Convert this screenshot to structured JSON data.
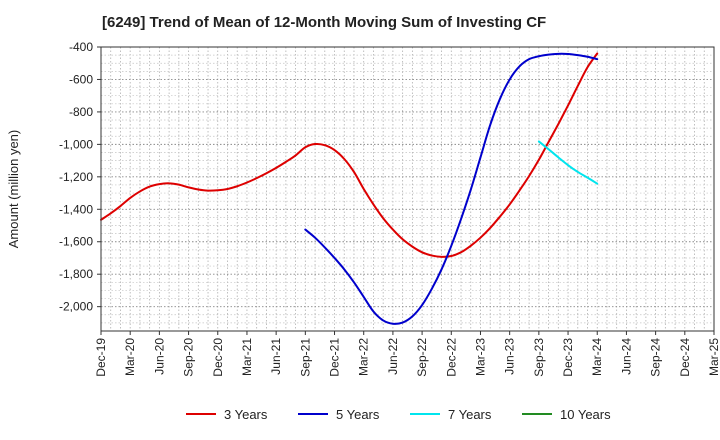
{
  "chart_data": {
    "type": "line",
    "title": "[6249]  Trend of Mean of 12-Month Moving Sum of Investing CF",
    "ylabel": "Amount (million yen)",
    "xlabel": "",
    "ylim": [
      -2150,
      -400
    ],
    "yticks": [
      -400,
      -600,
      -800,
      -1000,
      -1200,
      -1400,
      -1600,
      -1800,
      -2000
    ],
    "ytick_labels": [
      "-400",
      "-600",
      "-800",
      "-1,000",
      "-1,200",
      "-1,400",
      "-1,600",
      "-1,800",
      "-2,000"
    ],
    "xlim": [
      "2019-12",
      "2025-03"
    ],
    "xtick_labels": [
      "Dec-19",
      "Mar-20",
      "Jun-20",
      "Sep-20",
      "Dec-20",
      "Mar-21",
      "Jun-21",
      "Sep-21",
      "Dec-21",
      "Mar-22",
      "Jun-22",
      "Sep-22",
      "Dec-22",
      "Mar-23",
      "Jun-23",
      "Sep-23",
      "Dec-23",
      "Mar-24",
      "Jun-24",
      "Sep-24",
      "Dec-24",
      "Mar-25"
    ],
    "grid": true,
    "legend_position": "bottom",
    "series": [
      {
        "name": "3 Years",
        "color": "#dd0000",
        "points": [
          [
            "2019-12",
            -1465
          ],
          [
            "2020-01",
            -1425
          ],
          [
            "2020-02",
            -1380
          ],
          [
            "2020-03",
            -1330
          ],
          [
            "2020-04",
            -1290
          ],
          [
            "2020-05",
            -1260
          ],
          [
            "2020-06",
            -1245
          ],
          [
            "2020-07",
            -1240
          ],
          [
            "2020-08",
            -1248
          ],
          [
            "2020-09",
            -1265
          ],
          [
            "2020-10",
            -1278
          ],
          [
            "2020-11",
            -1285
          ],
          [
            "2020-12",
            -1283
          ],
          [
            "2021-01",
            -1275
          ],
          [
            "2021-02",
            -1258
          ],
          [
            "2021-03",
            -1235
          ],
          [
            "2021-04",
            -1208
          ],
          [
            "2021-05",
            -1178
          ],
          [
            "2021-06",
            -1145
          ],
          [
            "2021-07",
            -1108
          ],
          [
            "2021-08",
            -1068
          ],
          [
            "2021-09",
            -1018
          ],
          [
            "2021-10",
            -998
          ],
          [
            "2021-11",
            -1005
          ],
          [
            "2021-12",
            -1035
          ],
          [
            "2022-01",
            -1090
          ],
          [
            "2022-02",
            -1170
          ],
          [
            "2022-03",
            -1275
          ],
          [
            "2022-04",
            -1370
          ],
          [
            "2022-05",
            -1455
          ],
          [
            "2022-06",
            -1525
          ],
          [
            "2022-07",
            -1585
          ],
          [
            "2022-08",
            -1630
          ],
          [
            "2022-09",
            -1665
          ],
          [
            "2022-10",
            -1685
          ],
          [
            "2022-11",
            -1693
          ],
          [
            "2022-12",
            -1688
          ],
          [
            "2023-01",
            -1665
          ],
          [
            "2023-02",
            -1625
          ],
          [
            "2023-03",
            -1575
          ],
          [
            "2023-04",
            -1515
          ],
          [
            "2023-05",
            -1445
          ],
          [
            "2023-06",
            -1370
          ],
          [
            "2023-07",
            -1285
          ],
          [
            "2023-08",
            -1195
          ],
          [
            "2023-09",
            -1095
          ],
          [
            "2023-10",
            -985
          ],
          [
            "2023-11",
            -875
          ],
          [
            "2023-12",
            -760
          ],
          [
            "2024-01",
            -640
          ],
          [
            "2024-02",
            -525
          ],
          [
            "2024-03",
            -440
          ]
        ]
      },
      {
        "name": "5 Years",
        "color": "#0000cc",
        "points": [
          [
            "2021-09",
            -1525
          ],
          [
            "2021-10",
            -1575
          ],
          [
            "2021-11",
            -1635
          ],
          [
            "2021-12",
            -1700
          ],
          [
            "2022-01",
            -1770
          ],
          [
            "2022-02",
            -1850
          ],
          [
            "2022-03",
            -1940
          ],
          [
            "2022-04",
            -2030
          ],
          [
            "2022-05",
            -2085
          ],
          [
            "2022-06",
            -2105
          ],
          [
            "2022-07",
            -2098
          ],
          [
            "2022-08",
            -2060
          ],
          [
            "2022-09",
            -1990
          ],
          [
            "2022-10",
            -1890
          ],
          [
            "2022-11",
            -1770
          ],
          [
            "2022-12",
            -1625
          ],
          [
            "2023-01",
            -1460
          ],
          [
            "2023-02",
            -1280
          ],
          [
            "2023-03",
            -1080
          ],
          [
            "2023-04",
            -880
          ],
          [
            "2023-05",
            -720
          ],
          [
            "2023-06",
            -600
          ],
          [
            "2023-07",
            -520
          ],
          [
            "2023-08",
            -475
          ],
          [
            "2023-09",
            -457
          ],
          [
            "2023-10",
            -447
          ],
          [
            "2023-11",
            -442
          ],
          [
            "2023-12",
            -443
          ],
          [
            "2024-01",
            -450
          ],
          [
            "2024-02",
            -460
          ],
          [
            "2024-03",
            -475
          ]
        ]
      },
      {
        "name": "7 Years",
        "color": "#00e5ee",
        "points": [
          [
            "2023-09",
            -982
          ],
          [
            "2023-10",
            -1030
          ],
          [
            "2023-11",
            -1080
          ],
          [
            "2023-12",
            -1128
          ],
          [
            "2024-01",
            -1170
          ],
          [
            "2024-02",
            -1205
          ],
          [
            "2024-03",
            -1242
          ]
        ]
      },
      {
        "name": "10 Years",
        "color": "#228b22",
        "points": []
      }
    ]
  }
}
